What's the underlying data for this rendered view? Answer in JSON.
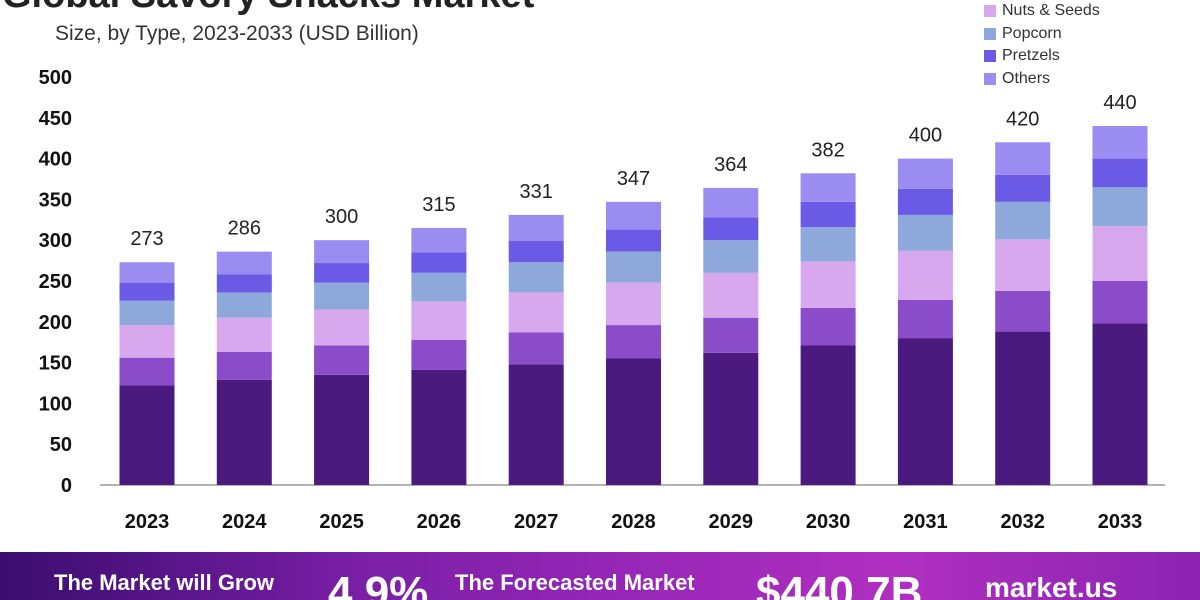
{
  "chart_data": {
    "type": "bar",
    "stacked": true,
    "title": "Global Savory Snacks Market",
    "subtitle": "Size, by Type, 2023-2033 (USD Billion)",
    "categories": [
      "2023",
      "2024",
      "2025",
      "2026",
      "2027",
      "2028",
      "2029",
      "2030",
      "2031",
      "2032",
      "2033"
    ],
    "totals": [
      273,
      286,
      300,
      315,
      331,
      347,
      364,
      382,
      400,
      420,
      440
    ],
    "series": [
      {
        "name": "",
        "color": "#4a1a7e",
        "values": [
          122,
          129,
          135,
          141,
          148,
          155,
          162,
          171,
          180,
          188,
          198
        ]
      },
      {
        "name": "",
        "color": "#8a4cc8",
        "values": [
          34,
          34,
          36,
          37,
          39,
          41,
          43,
          46,
          47,
          50,
          52
        ]
      },
      {
        "name": "Nuts & Seeds",
        "color": "#d7a8ee",
        "values": [
          40,
          42,
          44,
          47,
          49,
          52,
          55,
          57,
          60,
          63,
          67
        ]
      },
      {
        "name": "Popcorn",
        "color": "#8fa8dc",
        "values": [
          30,
          31,
          33,
          35,
          37,
          38,
          40,
          42,
          44,
          46,
          48
        ]
      },
      {
        "name": "Pretzels",
        "color": "#6b5ae6",
        "values": [
          22,
          22,
          24,
          25,
          26,
          27,
          28,
          31,
          32,
          33,
          35
        ]
      },
      {
        "name": "Others",
        "color": "#9a8cf0",
        "values": [
          25,
          28,
          28,
          30,
          32,
          34,
          36,
          35,
          37,
          40,
          40
        ]
      }
    ],
    "ylim": [
      0,
      500
    ],
    "yticks": [
      0,
      50,
      100,
      150,
      200,
      250,
      300,
      350,
      400,
      450,
      500
    ],
    "xlabel": "",
    "ylabel": "",
    "grid": false,
    "legend": "top-right"
  },
  "footer": {
    "grow_label": "The Market will Grow",
    "cagr": "4.9%",
    "forecast_label": "The Forecasted Market",
    "value": "$440.7B",
    "brand": "market.us"
  }
}
